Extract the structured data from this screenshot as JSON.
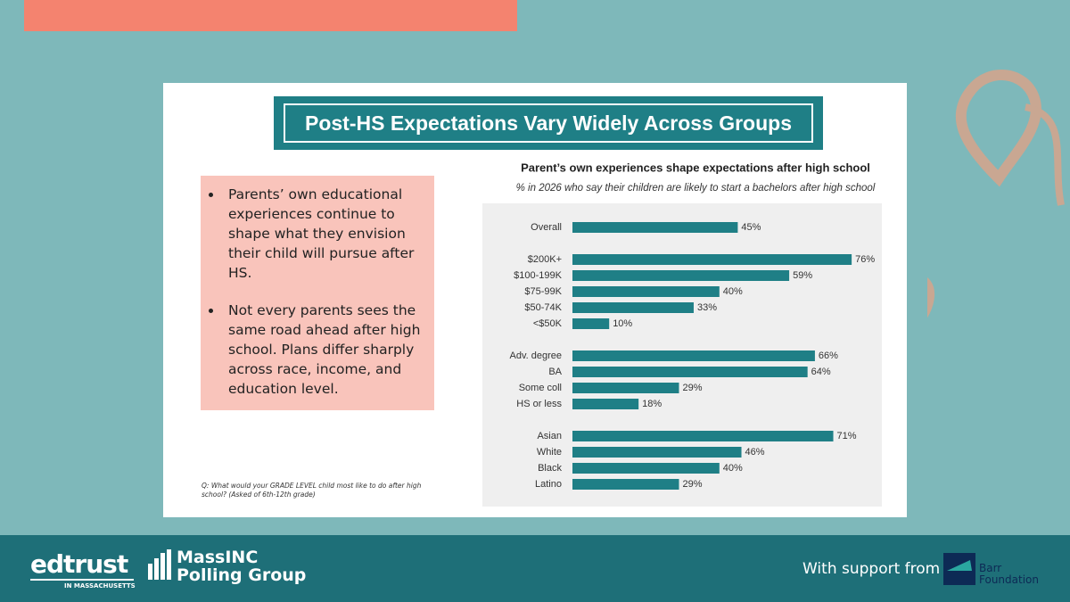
{
  "slide_title": "Post-HS Expectations Vary Widely Across Groups",
  "bullets": [
    "Parents’ own educational experiences continue to shape what they envision their child will pursue after HS.",
    "Not every parents sees the same road ahead after high school. Plans differ sharply across race, income, and education level."
  ],
  "footnote": "Q: What would your GRADE LEVEL child most like to do after high school? (Asked of 6th-12th grade)",
  "footer": {
    "edtrust": "edtrust",
    "edtrust_sub": "IN MASSACHUSETTS",
    "massinc": "MassINC",
    "polling": "Polling Group",
    "support": "With support from",
    "barr": "Barr",
    "foundation": "Foundation"
  },
  "chart_data": {
    "type": "bar",
    "orientation": "horizontal",
    "title": "Parent’s own experiences shape expectations after high school",
    "subtitle": "% in 2026 who say their children are likely to start a bachelors after high school",
    "categories": [
      "Overall",
      null,
      "$200K+",
      "$100-199K",
      "$75-99K",
      "$50-74K",
      "<$50K",
      null,
      "Adv. degree",
      "BA",
      "Some coll",
      "HS or less",
      null,
      "Asian",
      "White",
      "Black",
      "Latino"
    ],
    "values": [
      45,
      null,
      76,
      59,
      40,
      33,
      10,
      null,
      66,
      64,
      29,
      18,
      null,
      71,
      46,
      40,
      29
    ],
    "value_labels": [
      "45%",
      null,
      "76%",
      "59%",
      "40%",
      "33%",
      "10%",
      null,
      "66%",
      "64%",
      "29%",
      "18%",
      null,
      "71%",
      "46%",
      "40%",
      "29%"
    ],
    "color": "#1f7f86"
  }
}
